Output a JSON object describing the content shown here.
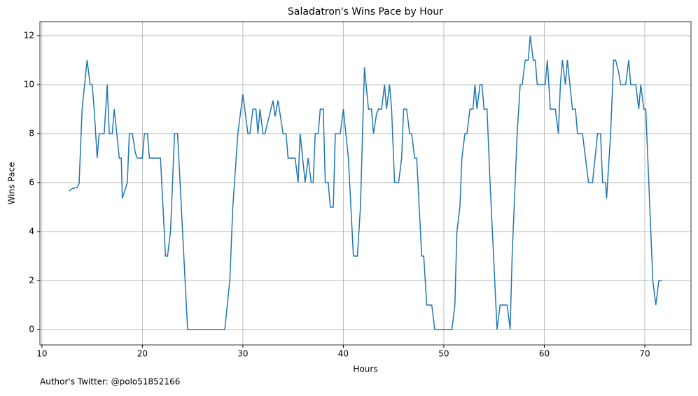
{
  "chart_data": {
    "type": "line",
    "title": "Saladatron's Wins Pace by Hour",
    "xlabel": "Hours",
    "ylabel": "Wins Pace",
    "note": "Author's Twitter: @polo51852166",
    "x": [
      12.7,
      13.0,
      13.5,
      13.7,
      14.0,
      14.5,
      14.8,
      15.0,
      15.2,
      15.5,
      15.7,
      16.2,
      16.5,
      16.7,
      17.0,
      17.2,
      17.7,
      17.9,
      18.0,
      18.5,
      18.7,
      19.0,
      19.3,
      19.5,
      20.0,
      20.2,
      20.5,
      20.7,
      21.8,
      22.3,
      22.5,
      22.8,
      23.2,
      23.5,
      24.5,
      28.2,
      28.7,
      29.0,
      29.5,
      30.0,
      30.5,
      30.7,
      31.0,
      31.3,
      31.5,
      31.7,
      32.0,
      32.2,
      33.0,
      33.2,
      33.5,
      34.0,
      34.3,
      34.5,
      35.2,
      35.5,
      35.7,
      36.2,
      36.5,
      36.8,
      37.0,
      37.2,
      37.5,
      37.7,
      38.0,
      38.2,
      38.5,
      38.7,
      39.0,
      39.2,
      39.7,
      40.0,
      40.5,
      41.0,
      41.4,
      41.7,
      42.1,
      42.5,
      42.8,
      43.0,
      43.3,
      43.5,
      43.8,
      44.1,
      44.3,
      44.6,
      44.8,
      45.1,
      45.5,
      45.8,
      46.0,
      46.3,
      46.6,
      46.8,
      47.1,
      47.3,
      47.8,
      48.0,
      48.3,
      48.8,
      49.1,
      50.8,
      51.1,
      51.3,
      51.6,
      51.8,
      52.1,
      52.3,
      52.6,
      52.9,
      53.1,
      53.3,
      53.6,
      53.8,
      54.0,
      54.3,
      54.6,
      55.3,
      55.6,
      56.3,
      56.6,
      56.8,
      57.3,
      57.6,
      57.8,
      58.1,
      58.4,
      58.6,
      58.9,
      59.1,
      59.3,
      60.1,
      60.3,
      60.6,
      61.1,
      61.4,
      61.6,
      61.8,
      62.1,
      62.3,
      62.8,
      63.1,
      63.3,
      63.8,
      64.4,
      64.8,
      65.3,
      65.6,
      65.8,
      66.1,
      66.2,
      66.6,
      66.9,
      67.1,
      67.4,
      67.6,
      68.1,
      68.4,
      68.6,
      69.1,
      69.4,
      69.6,
      69.9,
      70.1,
      70.3,
      70.6,
      70.8,
      71.1,
      71.4,
      71.7
    ],
    "series": [
      {
        "name": "Wins Pace",
        "color": "#1f77b4",
        "values": [
          5.65,
          5.75,
          5.8,
          5.95,
          9,
          11,
          10,
          10,
          9,
          7,
          8,
          8,
          10,
          8,
          8,
          9,
          7,
          7,
          5.35,
          6,
          8,
          8,
          7.2,
          7,
          7,
          8,
          8,
          7,
          7,
          3,
          3,
          4,
          8,
          8,
          0,
          0,
          2,
          5,
          8,
          9.6,
          8,
          8,
          9,
          9,
          8,
          9,
          8,
          8,
          9.35,
          8.7,
          9.35,
          8,
          8,
          7,
          7,
          6,
          8,
          6,
          7,
          6,
          6,
          8,
          8,
          9,
          9,
          6,
          6,
          5,
          5,
          8,
          8,
          9,
          7,
          3,
          3,
          5,
          10.7,
          9,
          9,
          8,
          8.8,
          9,
          9,
          10,
          9,
          10,
          9,
          6,
          6,
          7,
          9,
          9,
          8,
          8,
          7,
          7,
          3,
          3,
          1,
          1,
          0,
          0,
          1,
          4,
          5,
          7,
          8,
          8,
          9,
          9,
          10,
          9,
          10,
          10,
          9,
          9,
          6,
          0,
          1,
          1,
          0,
          3,
          8,
          10,
          10,
          11,
          11,
          12,
          11,
          11,
          10,
          10,
          11,
          9,
          9,
          8,
          10,
          11,
          10,
          11,
          9,
          9,
          8,
          8,
          6,
          6,
          8,
          8,
          6,
          6,
          5.35,
          8,
          11,
          11,
          10.5,
          10,
          10,
          11,
          10,
          10,
          9,
          10,
          9,
          9,
          7,
          4,
          2,
          1,
          2,
          2
        ]
      }
    ],
    "xlim": [
      9.8,
      74.6
    ],
    "ylim": [
      -0.63,
      12.57
    ],
    "xticks": [
      10,
      20,
      30,
      40,
      50,
      60,
      70
    ],
    "yticks": [
      0,
      2,
      4,
      6,
      8,
      10,
      12
    ],
    "grid": true
  }
}
